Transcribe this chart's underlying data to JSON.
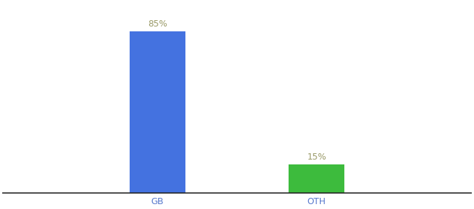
{
  "categories": [
    "GB",
    "OTH"
  ],
  "values": [
    85,
    15
  ],
  "bar_colors": [
    "#4472e0",
    "#3dbb3d"
  ],
  "label_values": [
    "85%",
    "15%"
  ],
  "label_color": "#999966",
  "tick_label_color": "#5577cc",
  "background_color": "#ffffff",
  "ylim": [
    0,
    100
  ],
  "bar_width": 0.12,
  "figsize": [
    6.8,
    3.0
  ],
  "dpi": 100,
  "xlabel_fontsize": 9,
  "label_fontsize": 9
}
